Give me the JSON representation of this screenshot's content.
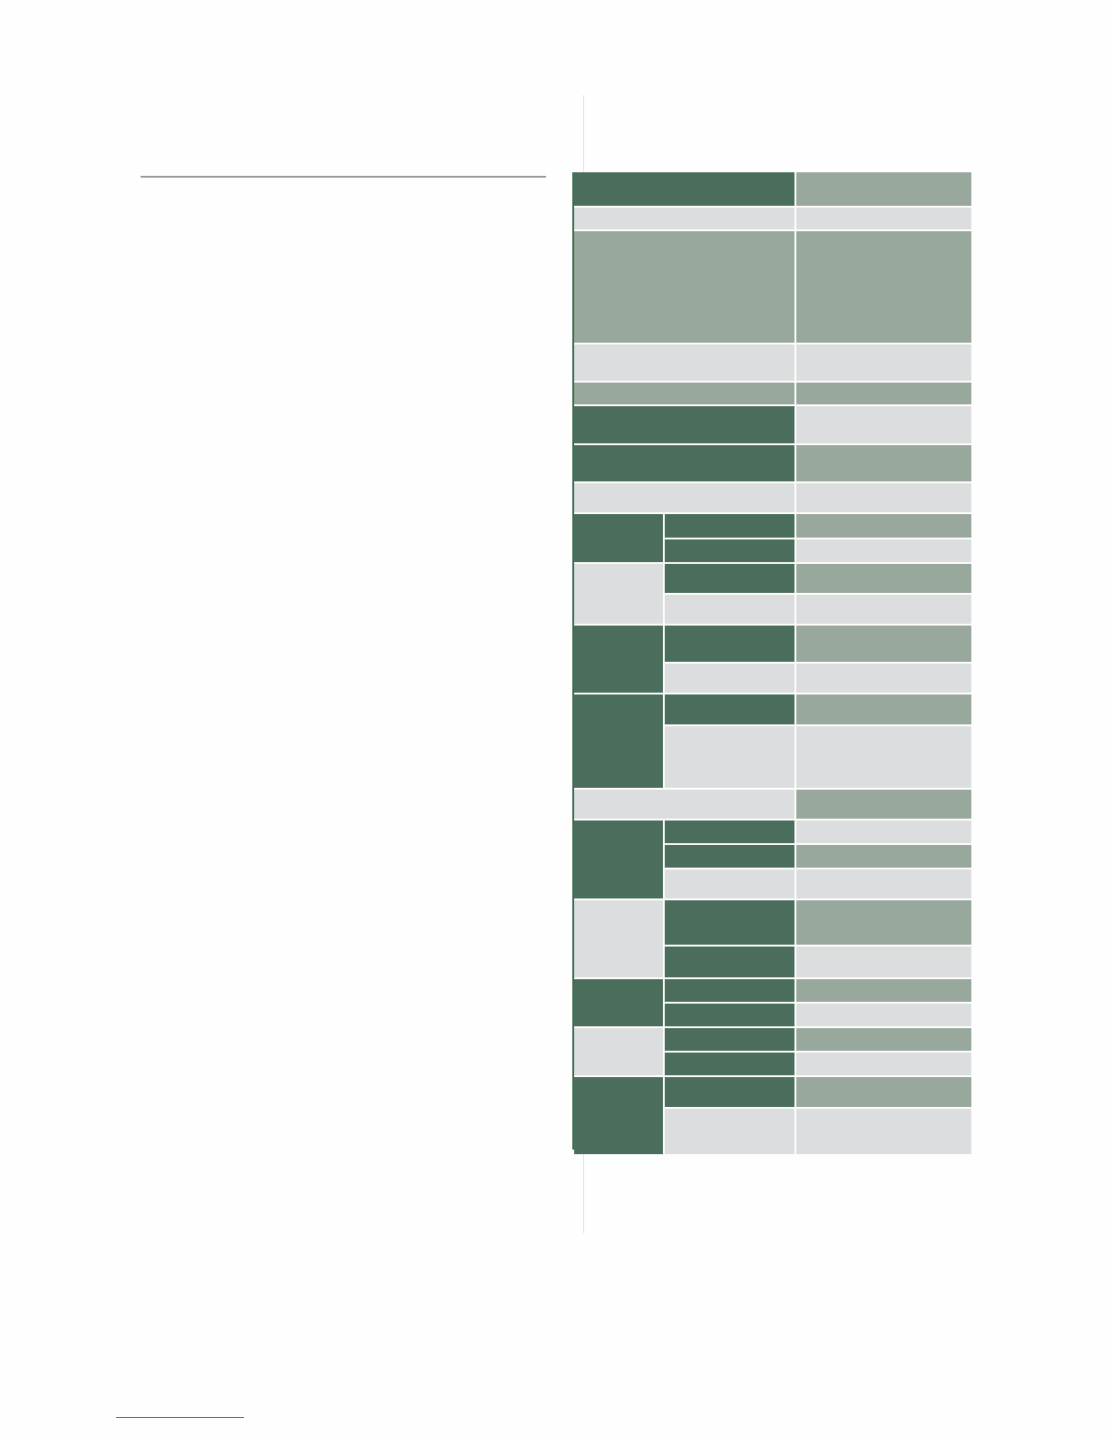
{
  "page": {
    "colors": {
      "dark_green": "#4b6e5c",
      "sage": "#98a89c",
      "light_grey": "#dcdddf",
      "rule": "#9a9a9a",
      "link_underline": "#3a3aff"
    }
  },
  "spec_table": {
    "rows": [
      {
        "cells": [
          {
            "text": "",
            "fill": "dark"
          },
          {
            "text": "",
            "fill": "sage"
          }
        ]
      },
      {
        "cells": [
          {
            "text": "",
            "fill": "light"
          },
          {
            "text": "",
            "fill": "light"
          }
        ]
      },
      {
        "cells": [
          {
            "text": "",
            "fill": "sage"
          },
          {
            "text": "",
            "fill": "sage"
          }
        ]
      },
      {
        "cells": [
          {
            "text": "",
            "fill": "light"
          },
          {
            "text": "",
            "fill": "light"
          }
        ]
      },
      {
        "cells": [
          {
            "text": "",
            "fill": "sage"
          },
          {
            "text": "",
            "fill": "sage"
          }
        ]
      },
      {
        "cells": [
          {
            "text": "",
            "fill": "dark"
          },
          {
            "text": "",
            "fill": "light"
          }
        ]
      },
      {
        "cells": [
          {
            "text": "",
            "fill": "dark"
          },
          {
            "text": "",
            "fill": "sage"
          }
        ]
      },
      {
        "cells": [
          {
            "text": "",
            "fill": "light"
          },
          {
            "text": "",
            "fill": "light"
          }
        ]
      },
      {
        "group": {
          "text": "",
          "fill": "dark"
        },
        "rows": [
          [
            {
              "text": "",
              "fill": "dark"
            },
            {
              "text": "",
              "fill": "sage"
            }
          ],
          [
            {
              "text": "",
              "fill": "dark"
            },
            {
              "text": "",
              "fill": "light"
            }
          ]
        ]
      },
      {
        "group": {
          "text": "",
          "fill": "light"
        },
        "rows": [
          [
            {
              "text": "",
              "fill": "dark"
            },
            {
              "text": "",
              "fill": "sage"
            }
          ],
          [
            {
              "text": "",
              "fill": "light"
            },
            {
              "text": "",
              "fill": "light"
            }
          ]
        ]
      },
      {
        "group": {
          "text": "",
          "fill": "dark"
        },
        "rows": [
          [
            {
              "text": "",
              "fill": "dark"
            },
            {
              "text": "",
              "fill": "sage"
            }
          ],
          [
            {
              "text": "",
              "fill": "light"
            },
            {
              "text": "",
              "fill": "light"
            }
          ]
        ]
      },
      {
        "group": {
          "text": "",
          "fill": "dark"
        },
        "rows": [
          [
            {
              "text": "",
              "fill": "dark"
            },
            {
              "text": "",
              "fill": "sage"
            }
          ],
          [
            {
              "text": "",
              "fill": "light"
            },
            {
              "text": "",
              "fill": "light"
            }
          ]
        ]
      },
      {
        "cells": [
          {
            "text": "",
            "fill": "light"
          },
          {
            "text": "",
            "fill": "sage"
          }
        ]
      },
      {
        "group": {
          "text": "",
          "fill": "dark"
        },
        "rows": [
          [
            {
              "text": "",
              "fill": "dark"
            },
            {
              "text": "",
              "fill": "light"
            }
          ],
          [
            {
              "text": "",
              "fill": "dark"
            },
            {
              "text": "",
              "fill": "sage"
            }
          ],
          [
            {
              "text": "",
              "fill": "light"
            },
            {
              "text": "",
              "fill": "light"
            }
          ]
        ]
      },
      {
        "group": {
          "text": "",
          "fill": "light"
        },
        "rows": [
          [
            {
              "text": "",
              "fill": "dark"
            },
            {
              "text": "",
              "fill": "sage"
            }
          ],
          [
            {
              "text": "",
              "fill": "dark"
            },
            {
              "text": "",
              "fill": "light"
            }
          ]
        ]
      },
      {
        "group": {
          "text": "",
          "fill": "dark"
        },
        "rows": [
          [
            {
              "text": "",
              "fill": "dark"
            },
            {
              "text": "",
              "fill": "sage"
            }
          ],
          [
            {
              "text": "",
              "fill": "dark"
            },
            {
              "text": "",
              "fill": "light"
            }
          ]
        ]
      },
      {
        "group": {
          "text": "",
          "fill": "light"
        },
        "rows": [
          [
            {
              "text": "",
              "fill": "dark"
            },
            {
              "text": "",
              "fill": "sage"
            }
          ],
          [
            {
              "text": "",
              "fill": "dark"
            },
            {
              "text": "",
              "fill": "light"
            }
          ]
        ]
      },
      {
        "group": {
          "text": "",
          "fill": "dark"
        },
        "rows": [
          [
            {
              "text": "",
              "fill": "dark"
            },
            {
              "text": "",
              "fill": "sage"
            }
          ],
          [
            {
              "text": "",
              "fill": "light"
            },
            {
              "text": "",
              "fill": "light"
            }
          ]
        ]
      }
    ]
  }
}
